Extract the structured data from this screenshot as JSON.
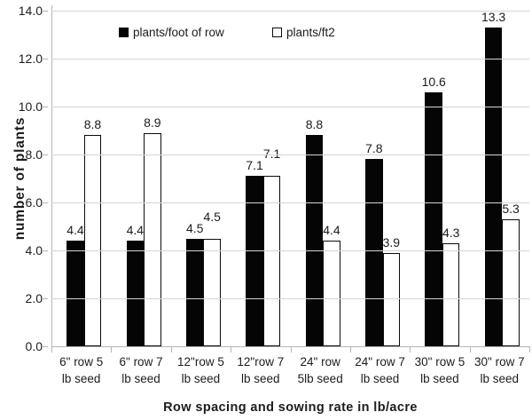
{
  "chart_data": {
    "type": "bar",
    "title": "",
    "xlabel": "Row spacing and sowing rate in lb/acre",
    "ylabel": "number of plants",
    "categories": [
      "6\" row 5 lb seed",
      "6\" row 7 lb seed",
      "12\"row 5 lb seed",
      "12\"row 7 lb seed",
      "24\" row 5lb seed",
      "24\" row 7 lb seed",
      "30\" row 5 lb seed",
      "30\" row 7 lb seed"
    ],
    "category_label_lines": [
      [
        "6\" row 5",
        "lb seed"
      ],
      [
        "6\" row 7",
        "lb seed"
      ],
      [
        "12\"row 5",
        "lb seed"
      ],
      [
        "12\"row 7",
        "lb seed"
      ],
      [
        "24\" row",
        "5lb seed"
      ],
      [
        "24\" row 7",
        "lb seed"
      ],
      [
        "30\" row 5",
        "lb seed"
      ],
      [
        "30\" row 7",
        "lb seed"
      ]
    ],
    "series": [
      {
        "name": "plants/foot of row",
        "marker": "filled-square",
        "fill": "#050505",
        "border": "#050505",
        "values": [
          4.4,
          4.4,
          4.5,
          7.1,
          8.8,
          7.8,
          10.6,
          13.3
        ]
      },
      {
        "name": "plants/ft2",
        "marker": "open-square",
        "fill": "#ffffff",
        "border": "#0a0a0a",
        "values": [
          8.8,
          8.9,
          4.5,
          7.1,
          4.4,
          3.9,
          4.3,
          5.3
        ]
      }
    ],
    "data_labels": true,
    "y_ticks": [
      "0.0",
      "2.0",
      "4.0",
      "6.0",
      "8.0",
      "10.0",
      "12.0",
      "14.0"
    ],
    "ylim": [
      0,
      14
    ],
    "grid": true,
    "legend_position": "top-inside"
  },
  "colors": {
    "grid": "#d4d4d4",
    "axis": "#b5b5b5",
    "text": "#1c1c1c",
    "background": "#ffffff"
  }
}
